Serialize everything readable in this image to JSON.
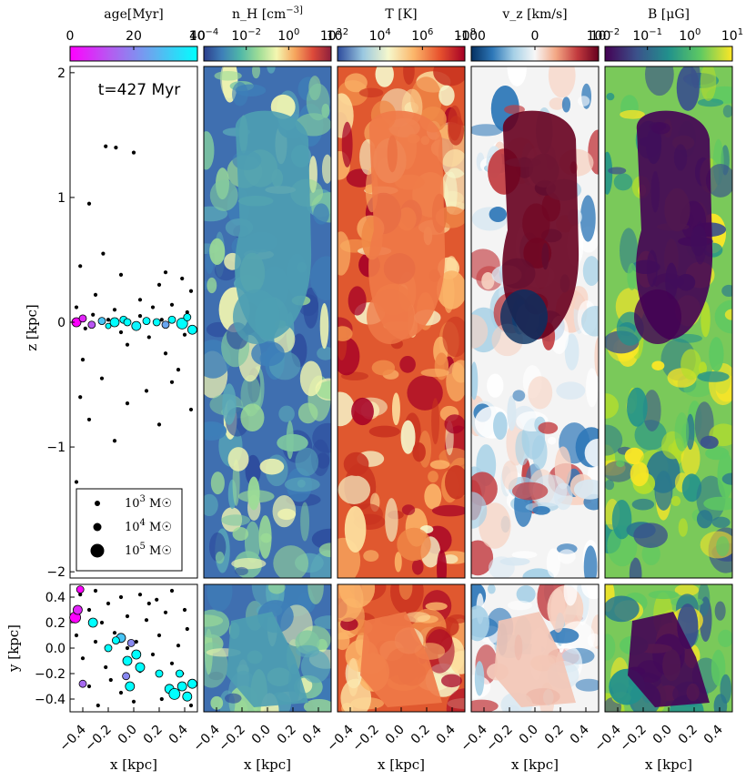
{
  "figure": {
    "time_label": "t=427 Myr",
    "panel_names": [
      "star-particles",
      "density",
      "temperature",
      "vertical-velocity",
      "magnetic-field"
    ]
  },
  "colorbars": [
    {
      "name": "age",
      "title": "age[Myr]",
      "ticks": [
        "0",
        "20",
        "40"
      ],
      "colors": [
        "#ff00ff",
        "#b060f0",
        "#60b0f0",
        "#00ffff"
      ]
    },
    {
      "name": "density",
      "title": "n_H [cm^-3]",
      "ticks": [
        "10^-4",
        "10^-2",
        "10^0",
        "10^2"
      ],
      "colors": [
        "#2c3e8c",
        "#3e7fb8",
        "#4fb7a8",
        "#9ddc96",
        "#f4f7b0",
        "#f6a65e",
        "#dc4a3a",
        "#8d1f3c"
      ]
    },
    {
      "name": "temperature",
      "title": "T [K]",
      "ticks": [
        "10^2",
        "10^4",
        "10^6",
        "10^8"
      ],
      "colors": [
        "#2c4a9c",
        "#9ac8e0",
        "#f6f8cc",
        "#fbb569",
        "#e8532e",
        "#a50026"
      ]
    },
    {
      "name": "vz",
      "title": "v_z [km/s]",
      "ticks": [
        "-100",
        "0",
        "100"
      ],
      "colors": [
        "#053061",
        "#2d77b8",
        "#a6d0e6",
        "#f7f7f7",
        "#f3a683",
        "#c23a3e",
        "#67001f"
      ]
    },
    {
      "name": "bfield",
      "title": "B [μG]",
      "ticks": [
        "10^-2",
        "10^-1",
        "10^0",
        "10^1"
      ],
      "colors": [
        "#440154",
        "#3b528b",
        "#21918c",
        "#5ec962",
        "#fde725"
      ]
    }
  ],
  "axes": {
    "z_label": "z [kpc]",
    "y_label": "y [kpc]",
    "x_label": "x [kpc]",
    "z_ticks": [
      "2",
      "1",
      "0",
      "−1",
      "−2"
    ],
    "y_ticks": [
      "0.4",
      "0.2",
      "0.0",
      "−0.2",
      "−0.4"
    ],
    "x_ticks": [
      "−0.4",
      "−0.2",
      "0.0",
      "0.2",
      "0.4"
    ]
  },
  "legend": {
    "entries": [
      "10^3 M☉",
      "10^4 M☉",
      "10^5 M☉"
    ]
  },
  "chart_data": {
    "type": "scatter",
    "title": "",
    "xlabel": "x [kpc]",
    "ylabel_top": "z [kpc]",
    "ylabel_bottom": "y [kpc]",
    "xlim": [
      -0.5,
      0.5
    ],
    "zlim": [
      -2.05,
      2.05
    ],
    "ylim": [
      -0.5,
      0.5
    ],
    "edge_on_stars": [
      [
        -0.22,
        1.41,
        3
      ],
      [
        -0.14,
        1.4,
        3
      ],
      [
        0.0,
        1.36,
        3
      ],
      [
        -0.35,
        0.95,
        3
      ],
      [
        -0.24,
        0.55,
        3
      ],
      [
        -0.42,
        0.45,
        3
      ],
      [
        0.25,
        0.4,
        3
      ],
      [
        0.38,
        0.35,
        3
      ],
      [
        -0.1,
        0.38,
        3
      ],
      [
        0.2,
        0.3,
        3
      ],
      [
        0.45,
        0.25,
        3
      ],
      [
        -0.3,
        0.22,
        3
      ],
      [
        0.05,
        0.18,
        3
      ],
      [
        -0.45,
        0.12,
        3
      ],
      [
        0.3,
        0.14,
        3
      ],
      [
        -0.15,
        0.1,
        3
      ],
      [
        0.42,
        0.08,
        3
      ],
      [
        -0.38,
        -0.05,
        3
      ],
      [
        0.12,
        -0.12,
        3
      ],
      [
        -0.05,
        -0.18,
        3
      ],
      [
        0.25,
        -0.25,
        3
      ],
      [
        -0.4,
        -0.3,
        3
      ],
      [
        0.35,
        -0.38,
        3
      ],
      [
        -0.25,
        -0.45,
        3
      ],
      [
        0.1,
        -0.55,
        3
      ],
      [
        -0.42,
        -0.6,
        3
      ],
      [
        0.45,
        -0.7,
        3
      ],
      [
        -0.05,
        -0.65,
        3
      ],
      [
        -0.35,
        -0.78,
        3
      ],
      [
        0.2,
        -0.82,
        3
      ],
      [
        -0.15,
        -0.95,
        3
      ],
      [
        0.3,
        -0.48,
        3
      ],
      [
        -0.45,
        -1.28,
        3
      ],
      [
        0.15,
        0.12,
        3
      ],
      [
        -0.2,
        0.02,
        3
      ],
      [
        0.05,
        0.05,
        3
      ],
      [
        0.4,
        -0.1,
        3
      ],
      [
        -0.1,
        -0.08,
        3
      ],
      [
        0.22,
        0.02,
        3
      ],
      [
        -0.32,
        0.06,
        3
      ]
    ],
    "edge_on_young": [
      [
        -0.45,
        0.0,
        5,
        0
      ],
      [
        -0.4,
        0.03,
        4,
        5
      ],
      [
        -0.33,
        -0.02,
        4,
        12
      ],
      [
        -0.25,
        0.01,
        4,
        30
      ],
      [
        -0.15,
        0.0,
        5,
        40
      ],
      [
        -0.08,
        0.02,
        4,
        40
      ],
      [
        0.02,
        -0.03,
        5,
        38
      ],
      [
        0.1,
        0.01,
        4,
        40
      ],
      [
        0.18,
        0.0,
        4,
        40
      ],
      [
        0.3,
        0.02,
        4,
        40
      ],
      [
        0.38,
        -0.01,
        6,
        40
      ],
      [
        0.46,
        -0.06,
        5,
        40
      ],
      [
        -0.05,
        0.0,
        4,
        40
      ],
      [
        0.25,
        -0.02,
        4,
        25
      ],
      [
        -0.2,
        -0.03,
        3,
        40
      ],
      [
        0.42,
        0.04,
        4,
        40
      ]
    ],
    "face_on_stars": [
      [
        -0.42,
        0.42,
        3
      ],
      [
        -0.3,
        0.45,
        3
      ],
      [
        -0.2,
        0.35,
        3
      ],
      [
        -0.1,
        0.4,
        3
      ],
      [
        0.05,
        0.42,
        3
      ],
      [
        0.18,
        0.38,
        3
      ],
      [
        0.3,
        0.45,
        3
      ],
      [
        0.4,
        0.3,
        3
      ],
      [
        -0.35,
        0.3,
        3
      ],
      [
        -0.25,
        0.2,
        3
      ],
      [
        -0.05,
        0.25,
        3
      ],
      [
        0.1,
        0.22,
        3
      ],
      [
        0.25,
        0.28,
        3
      ],
      [
        0.42,
        0.15,
        3
      ],
      [
        -0.45,
        0.1,
        3
      ],
      [
        -0.3,
        0.05,
        3
      ],
      [
        -0.15,
        0.12,
        3
      ],
      [
        0.02,
        0.05,
        3
      ],
      [
        0.2,
        0.1,
        3
      ],
      [
        0.35,
        0.02,
        3
      ],
      [
        -0.4,
        -0.08,
        3
      ],
      [
        -0.22,
        -0.15,
        3
      ],
      [
        0.05,
        -0.18,
        3
      ],
      [
        0.15,
        -0.05,
        3
      ],
      [
        0.3,
        -0.12,
        3
      ],
      [
        -0.35,
        -0.3,
        3
      ],
      [
        -0.1,
        -0.35,
        3
      ],
      [
        0.0,
        -0.42,
        3
      ],
      [
        0.22,
        -0.4,
        3
      ],
      [
        0.45,
        -0.45,
        3
      ],
      [
        -0.28,
        -0.45,
        3
      ],
      [
        0.38,
        -0.2,
        3
      ],
      [
        -0.05,
        0.0,
        3
      ],
      [
        0.12,
        0.35,
        3
      ],
      [
        -0.18,
        -0.25,
        3
      ]
    ],
    "face_on_young": [
      [
        -0.46,
        0.24,
        6,
        0
      ],
      [
        -0.44,
        0.3,
        5,
        5
      ],
      [
        -0.42,
        0.46,
        4,
        0
      ],
      [
        -0.32,
        0.2,
        5,
        40
      ],
      [
        -0.1,
        0.08,
        5,
        30
      ],
      [
        -0.02,
        0.04,
        4,
        20
      ],
      [
        -0.05,
        -0.1,
        5,
        40
      ],
      [
        0.02,
        -0.05,
        5,
        40
      ],
      [
        -0.4,
        -0.28,
        4,
        15
      ],
      [
        0.28,
        -0.32,
        5,
        40
      ],
      [
        0.32,
        -0.36,
        6,
        40
      ],
      [
        0.38,
        -0.3,
        5,
        40
      ],
      [
        0.42,
        -0.38,
        5,
        40
      ],
      [
        0.46,
        -0.28,
        5,
        40
      ],
      [
        0.2,
        -0.2,
        4,
        40
      ],
      [
        -0.14,
        0.06,
        4,
        40
      ],
      [
        0.05,
        -0.15,
        5,
        40
      ],
      [
        -0.2,
        0.0,
        4,
        40
      ],
      [
        0.36,
        -0.2,
        4,
        40
      ],
      [
        -0.03,
        -0.3,
        5,
        40
      ],
      [
        -0.06,
        -0.22,
        4,
        20
      ]
    ]
  }
}
